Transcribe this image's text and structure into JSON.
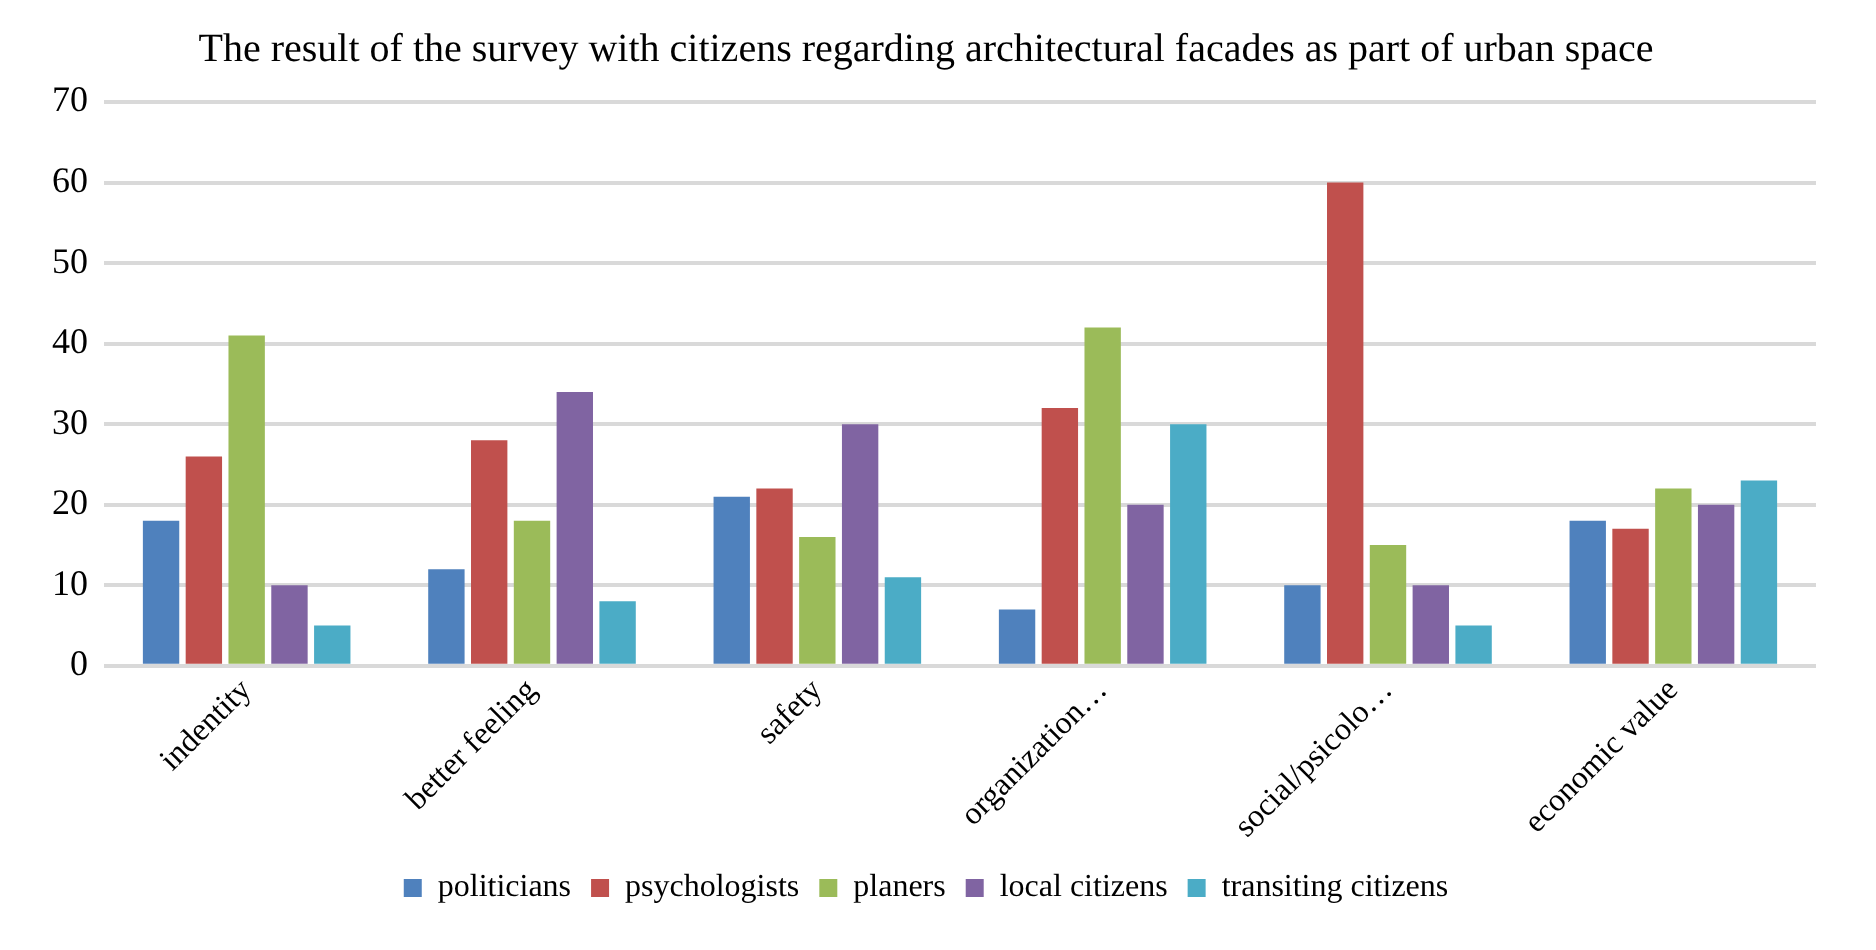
{
  "chart_data": {
    "type": "bar",
    "title": "The result of the survey with citizens regarding architectural facades as part of urban space",
    "categories": [
      "indentity",
      "better feeling",
      "safety",
      "organization…",
      "social/psicolo…",
      "economic value"
    ],
    "series": [
      {
        "name": "politicians",
        "color": "#4f81bd",
        "values": [
          18,
          12,
          21,
          7,
          10,
          18
        ]
      },
      {
        "name": "psychologists",
        "color": "#c0504d",
        "values": [
          26,
          28,
          22,
          32,
          60,
          17
        ]
      },
      {
        "name": "planers",
        "color": "#9bbb59",
        "values": [
          41,
          18,
          16,
          42,
          15,
          22
        ]
      },
      {
        "name": "local citizens",
        "color": "#8064a2",
        "values": [
          10,
          34,
          30,
          20,
          10,
          20
        ]
      },
      {
        "name": "transiting citizens",
        "color": "#4bacc6",
        "values": [
          5,
          8,
          11,
          30,
          5,
          23
        ]
      }
    ],
    "ylim": [
      0,
      70
    ],
    "yticks": [
      0,
      10,
      20,
      30,
      40,
      50,
      60,
      70
    ],
    "grid": "y",
    "legend": "bottom"
  }
}
